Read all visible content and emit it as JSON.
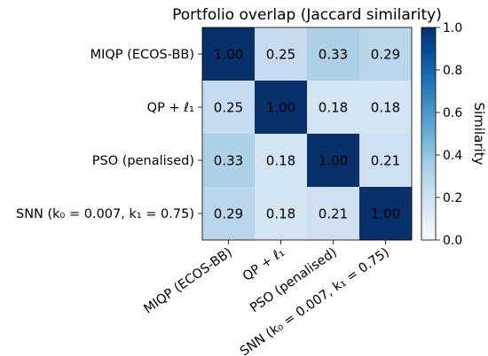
{
  "chart_data": {
    "type": "heatmap",
    "title": "Portfolio overlap (Jaccard similarity)",
    "row_labels": [
      "MIQP (ECOS-BB)",
      "QP + ℓ₁",
      "PSO (penalised)",
      "SNN (k₀ = 0.007, k₁ = 0.75)"
    ],
    "col_labels": [
      "MIQP (ECOS-BB)",
      "QP + ℓ₁",
      "PSO (penalised)",
      "SNN (k₀ = 0.007, k₁ = 0.75)"
    ],
    "values": [
      [
        1.0,
        0.25,
        0.33,
        0.29
      ],
      [
        0.25,
        1.0,
        0.18,
        0.18
      ],
      [
        0.33,
        0.18,
        1.0,
        0.21
      ],
      [
        0.29,
        0.18,
        0.21,
        1.0
      ]
    ],
    "value_labels": [
      [
        "1.00",
        "0.25",
        "0.33",
        "0.29"
      ],
      [
        "0.25",
        "1.00",
        "0.18",
        "0.18"
      ],
      [
        "0.33",
        "0.18",
        "1.00",
        "0.21"
      ],
      [
        "0.29",
        "0.18",
        "0.21",
        "1.00"
      ]
    ],
    "colormap": "Blues",
    "vmin": 0.0,
    "vmax": 1.0,
    "colorbar": {
      "label": "Similarity",
      "ticks": [
        0.0,
        0.2,
        0.4,
        0.6,
        0.8,
        1.0
      ],
      "tick_labels": [
        "0.0",
        "0.2",
        "0.4",
        "0.6",
        "0.8",
        "1.0"
      ]
    }
  }
}
